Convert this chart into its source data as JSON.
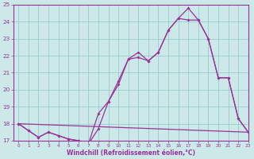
{
  "bg_color": "#cce8e8",
  "grid_color": "#99cccc",
  "line_color": "#993399",
  "xlabel": "Windchill (Refroidissement éolien,°C)",
  "ylim": [
    17,
    25
  ],
  "xlim": [
    -0.5,
    23
  ],
  "yticks": [
    17,
    18,
    19,
    20,
    21,
    22,
    23,
    24,
    25
  ],
  "xticks": [
    0,
    1,
    2,
    3,
    4,
    5,
    6,
    7,
    8,
    9,
    10,
    11,
    12,
    13,
    14,
    15,
    16,
    17,
    18,
    19,
    20,
    21,
    22,
    23
  ],
  "line1_x": [
    0,
    1,
    2,
    3,
    4,
    5,
    6,
    7,
    8,
    9,
    10,
    11,
    12,
    13,
    14,
    15,
    16,
    17,
    18,
    19,
    20,
    21,
    22,
    23
  ],
  "line1_y": [
    18.0,
    17.6,
    17.2,
    17.5,
    17.3,
    17.1,
    17.0,
    16.8,
    17.7,
    19.3,
    20.5,
    21.8,
    21.9,
    21.7,
    22.2,
    23.5,
    24.2,
    24.8,
    24.1,
    23.0,
    20.7,
    20.7,
    18.3,
    17.5
  ],
  "line2_x": [
    0,
    1,
    2,
    3,
    4,
    5,
    6,
    7,
    8,
    9,
    10,
    11,
    12,
    13,
    14,
    15,
    16,
    17,
    18,
    19,
    20,
    21,
    22,
    23
  ],
  "line2_y": [
    18.0,
    17.6,
    17.2,
    17.5,
    17.3,
    17.1,
    17.0,
    16.8,
    18.6,
    19.3,
    20.3,
    21.8,
    22.2,
    21.7,
    22.2,
    23.5,
    24.2,
    24.1,
    24.1,
    23.0,
    20.7,
    20.7,
    18.3,
    17.5
  ],
  "line3_x": [
    0,
    23
  ],
  "line3_y": [
    18.0,
    17.5
  ]
}
